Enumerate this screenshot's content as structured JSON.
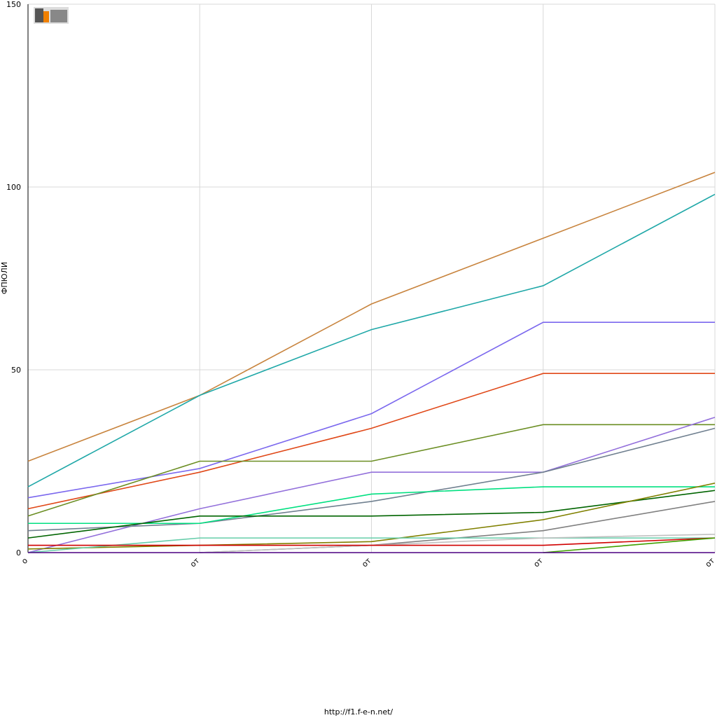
{
  "chart_data": {
    "type": "line",
    "y_label": "ФПЮЛИ",
    "footer": "http://f1.f-e-n.net/",
    "categories": [
      "о",
      "от",
      "от",
      "от",
      "от"
    ],
    "ylim": [
      0,
      150
    ],
    "yticks": [
      0,
      50,
      100,
      150
    ],
    "grid": true,
    "series": [
      {
        "color": "#c8843e",
        "values": [
          25,
          43,
          68,
          86,
          104
        ]
      },
      {
        "color": "#20a8a8",
        "values": [
          18,
          43,
          61,
          73,
          98
        ]
      },
      {
        "color": "#7b68ee",
        "values": [
          15,
          23,
          38,
          63,
          63
        ]
      },
      {
        "color": "#e04818",
        "values": [
          12,
          22,
          34,
          49,
          49
        ]
      },
      {
        "color": "#6b8e23",
        "values": [
          10,
          25,
          25,
          35,
          35
        ]
      },
      {
        "color": "#9370db",
        "values": [
          0,
          12,
          22,
          22,
          37
        ]
      },
      {
        "color": "#708090",
        "values": [
          6,
          8,
          14,
          22,
          34
        ]
      },
      {
        "color": "#00e080",
        "values": [
          8,
          8,
          16,
          18,
          18
        ]
      },
      {
        "color": "#006400",
        "values": [
          4,
          10,
          10,
          11,
          17
        ]
      },
      {
        "color": "#808000",
        "values": [
          1,
          2,
          3,
          9,
          19
        ]
      },
      {
        "color": "#808080",
        "values": [
          null,
          0,
          2,
          6,
          14
        ]
      },
      {
        "color": "#66cdaa",
        "values": [
          0,
          4,
          4,
          4,
          4
        ]
      },
      {
        "color": "#c0c0c0",
        "values": [
          null,
          0,
          2,
          4,
          5
        ]
      },
      {
        "color": "#d00000",
        "values": [
          2,
          2,
          2,
          2,
          4
        ]
      },
      {
        "color": "#40a000",
        "values": [
          null,
          null,
          null,
          0,
          4
        ]
      },
      {
        "color": "#4b0082",
        "values": [
          0,
          0,
          0,
          0,
          0
        ]
      }
    ]
  }
}
